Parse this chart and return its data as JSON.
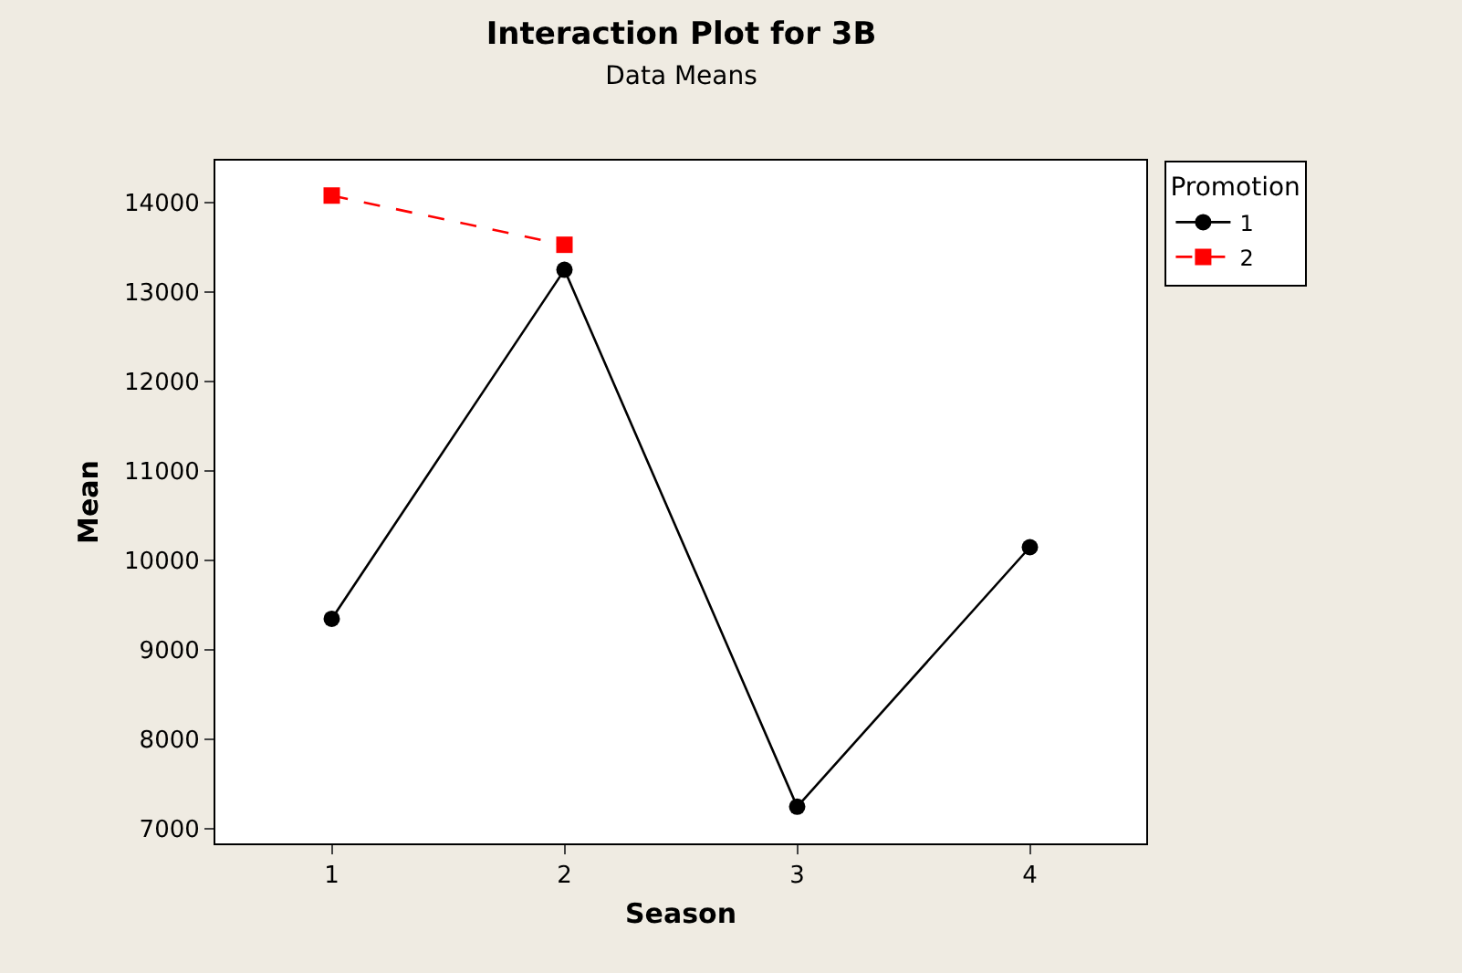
{
  "chart_data": {
    "type": "line",
    "title": "Interaction Plot for 3B",
    "subtitle": "Data Means",
    "xlabel": "Season",
    "ylabel": "Mean",
    "legend_title": "Promotion",
    "x": [
      1,
      2,
      3,
      4
    ],
    "xlim": [
      0.5,
      4.5
    ],
    "xticks": [
      1,
      2,
      3,
      4
    ],
    "ylim": [
      6840,
      14470
    ],
    "yticks": [
      7000,
      8000,
      9000,
      10000,
      11000,
      12000,
      13000,
      14000
    ],
    "series": [
      {
        "name": "1",
        "color": "#000000",
        "marker": "circle",
        "line_style": "solid",
        "values": [
          9350,
          13250,
          7250,
          10150
        ]
      },
      {
        "name": "2",
        "color": "#ff0000",
        "marker": "square",
        "line_style": "dashed",
        "values": [
          14080,
          13530,
          null,
          null
        ]
      }
    ],
    "grid": false,
    "legend": "top right"
  }
}
